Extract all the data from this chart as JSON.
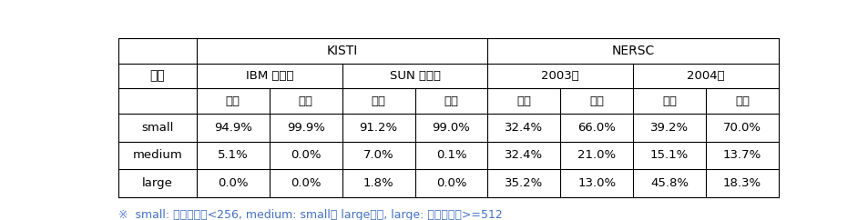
{
  "header1_kisti": "KISTI",
  "header1_nersc": "NERSC",
  "header2": [
    "구분",
    "IBM 시스템",
    "SUN 시스템",
    "2003년",
    "2004년"
  ],
  "header3": [
    "시간",
    "건수",
    "시간",
    "건수",
    "시간",
    "건수",
    "시간",
    "건수"
  ],
  "row_labels": [
    "small",
    "medium",
    "large"
  ],
  "data_rows": [
    [
      "94.9%",
      "99.9%",
      "91.2%",
      "99.0%",
      "32.4%",
      "66.0%",
      "39.2%",
      "70.0%"
    ],
    [
      "5.1%",
      "0.0%",
      "7.0%",
      "0.1%",
      "32.4%",
      "21.0%",
      "15.1%",
      "13.7%"
    ],
    [
      "0.0%",
      "0.0%",
      "1.8%",
      "0.0%",
      "35.2%",
      "13.0%",
      "45.8%",
      "18.3%"
    ]
  ],
  "footnote": "※  small: 프로세서수<256, medium: small과 large사이, large: 프로세서수>=512",
  "background_color": "#ffffff",
  "line_color": "#000000",
  "font_size": 9.5,
  "header_font_size": 10,
  "footnote_color": "#4472c4"
}
